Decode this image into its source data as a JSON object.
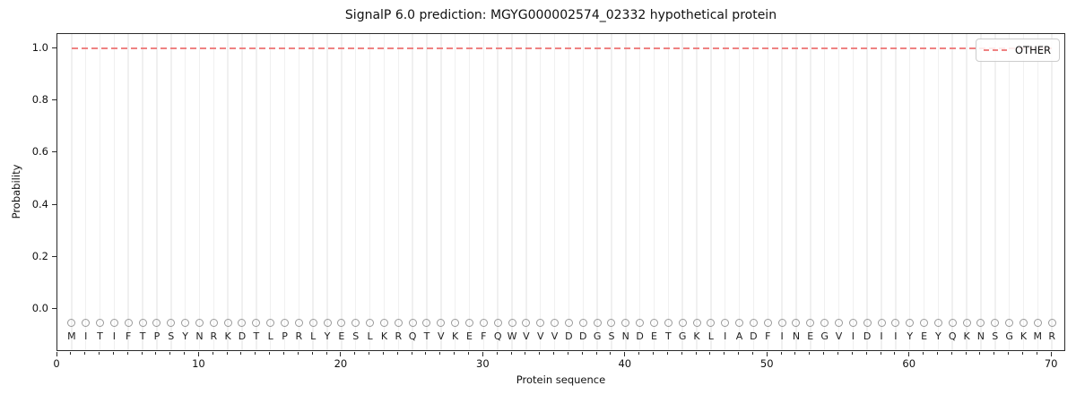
{
  "chart": {
    "title": "SignalP 6.0 prediction: MGYG000002574_02332 hypothetical protein",
    "xlabel": "Protein sequence",
    "ylabel": "Probability",
    "legend": {
      "label": "OTHER"
    }
  },
  "chart_data": {
    "type": "line",
    "title": "SignalP 6.0 prediction: MGYG000002574_02332 hypothetical protein",
    "xlabel": "Protein sequence",
    "ylabel": "Probability",
    "xlim": [
      0,
      71
    ],
    "ylim": [
      -0.161,
      1.055
    ],
    "x_ticks": [
      0,
      10,
      20,
      30,
      40,
      50,
      60,
      70
    ],
    "y_ticks": [
      0.0,
      0.2,
      0.4,
      0.6,
      0.8,
      1.0
    ],
    "y_tick_labels": [
      "0.0",
      "0.2",
      "0.4",
      "0.6",
      "0.8",
      "1.0"
    ],
    "grid": "vertical line at every residue position",
    "legend_position": "upper right",
    "series": [
      {
        "name": "OTHER",
        "color": "#ef8282",
        "linestyle": "dashed",
        "x_start": 1,
        "x_end": 70,
        "y_constant": 1.0
      }
    ],
    "sequence": "MITIFTPSYNRKDTLPRLYESLKRQTVKEFQWVVVDDGSNDETGKLIADFINEGVIDIIYEYQKNSGKMR",
    "sequence_marker": {
      "shape": "circle",
      "y": -0.05,
      "color": "#9a9a9a"
    },
    "colors": {
      "other_line": "#ef8282",
      "gridline": "#f0f0f0",
      "marker_stroke": "#9a9a9a",
      "letter": "#1f1f1f",
      "spine": "#2b2b2b"
    }
  }
}
